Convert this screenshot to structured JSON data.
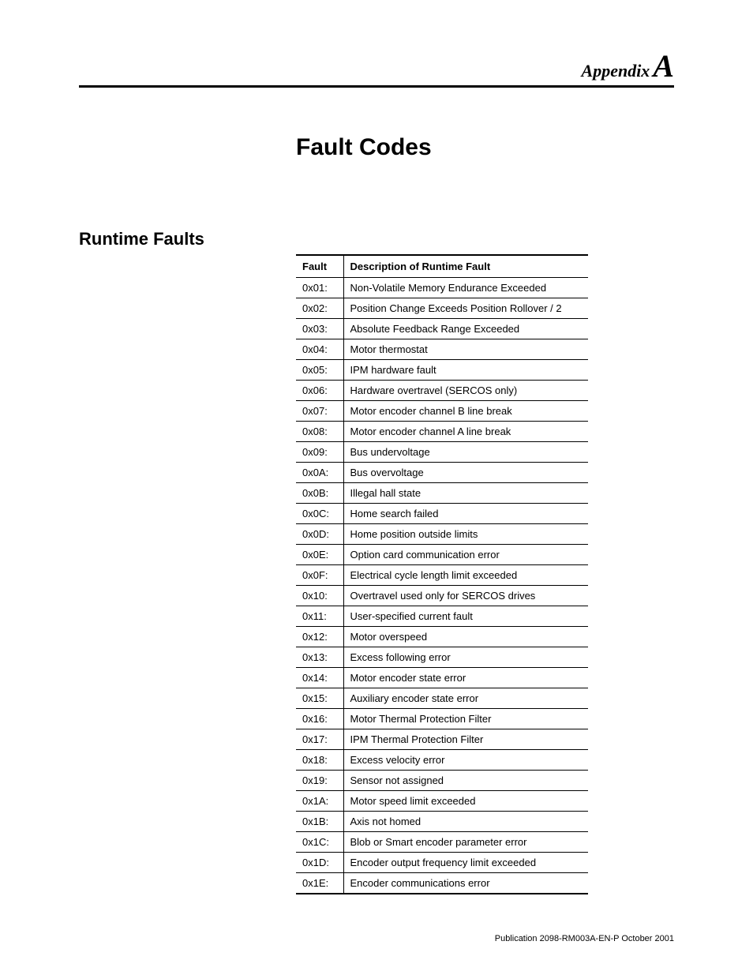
{
  "appendix": {
    "label": "Appendix",
    "letter": "A"
  },
  "chapter_title": "Fault Codes",
  "section_title": "Runtime Faults",
  "table": {
    "headers": {
      "fault": "Fault",
      "description": "Description of Runtime Fault"
    },
    "rows": [
      {
        "fault": "0x01:",
        "desc": "Non-Volatile Memory Endurance Exceeded"
      },
      {
        "fault": "0x02:",
        "desc": "Position Change Exceeds Position Rollover / 2"
      },
      {
        "fault": "0x03:",
        "desc": "Absolute Feedback Range Exceeded"
      },
      {
        "fault": "0x04:",
        "desc": "Motor thermostat"
      },
      {
        "fault": "0x05:",
        "desc": "IPM hardware fault"
      },
      {
        "fault": "0x06:",
        "desc": "Hardware overtravel (SERCOS only)"
      },
      {
        "fault": "0x07:",
        "desc": "Motor encoder channel B line break"
      },
      {
        "fault": "0x08:",
        "desc": "Motor encoder channel A line break"
      },
      {
        "fault": "0x09:",
        "desc": "Bus undervoltage"
      },
      {
        "fault": "0x0A:",
        "desc": "Bus overvoltage"
      },
      {
        "fault": "0x0B:",
        "desc": "Illegal hall state"
      },
      {
        "fault": "0x0C:",
        "desc": "Home search failed"
      },
      {
        "fault": "0x0D:",
        "desc": "Home position outside limits"
      },
      {
        "fault": "0x0E:",
        "desc": "Option card communication error"
      },
      {
        "fault": "0x0F:",
        "desc": "Electrical cycle length limit exceeded"
      },
      {
        "fault": "0x10:",
        "desc": "Overtravel used only for SERCOS drives"
      },
      {
        "fault": "0x11:",
        "desc": "User-specified current fault"
      },
      {
        "fault": "0x12:",
        "desc": "Motor overspeed"
      },
      {
        "fault": "0x13:",
        "desc": "Excess following error"
      },
      {
        "fault": "0x14:",
        "desc": "Motor encoder state error"
      },
      {
        "fault": "0x15:",
        "desc": "Auxiliary encoder state error"
      },
      {
        "fault": "0x16:",
        "desc": "Motor Thermal Protection Filter"
      },
      {
        "fault": "0x17:",
        "desc": "IPM Thermal Protection Filter"
      },
      {
        "fault": "0x18:",
        "desc": "Excess velocity error"
      },
      {
        "fault": "0x19:",
        "desc": "Sensor not assigned"
      },
      {
        "fault": "0x1A:",
        "desc": "Motor speed limit exceeded"
      },
      {
        "fault": "0x1B:",
        "desc": "Axis not homed"
      },
      {
        "fault": "0x1C:",
        "desc": "Blob or Smart encoder parameter error"
      },
      {
        "fault": "0x1D:",
        "desc": "Encoder output frequency limit exceeded"
      },
      {
        "fault": "0x1E:",
        "desc": "Encoder communications error"
      }
    ]
  },
  "footer": "Publication 2098-RM003A-EN-P October 2001"
}
